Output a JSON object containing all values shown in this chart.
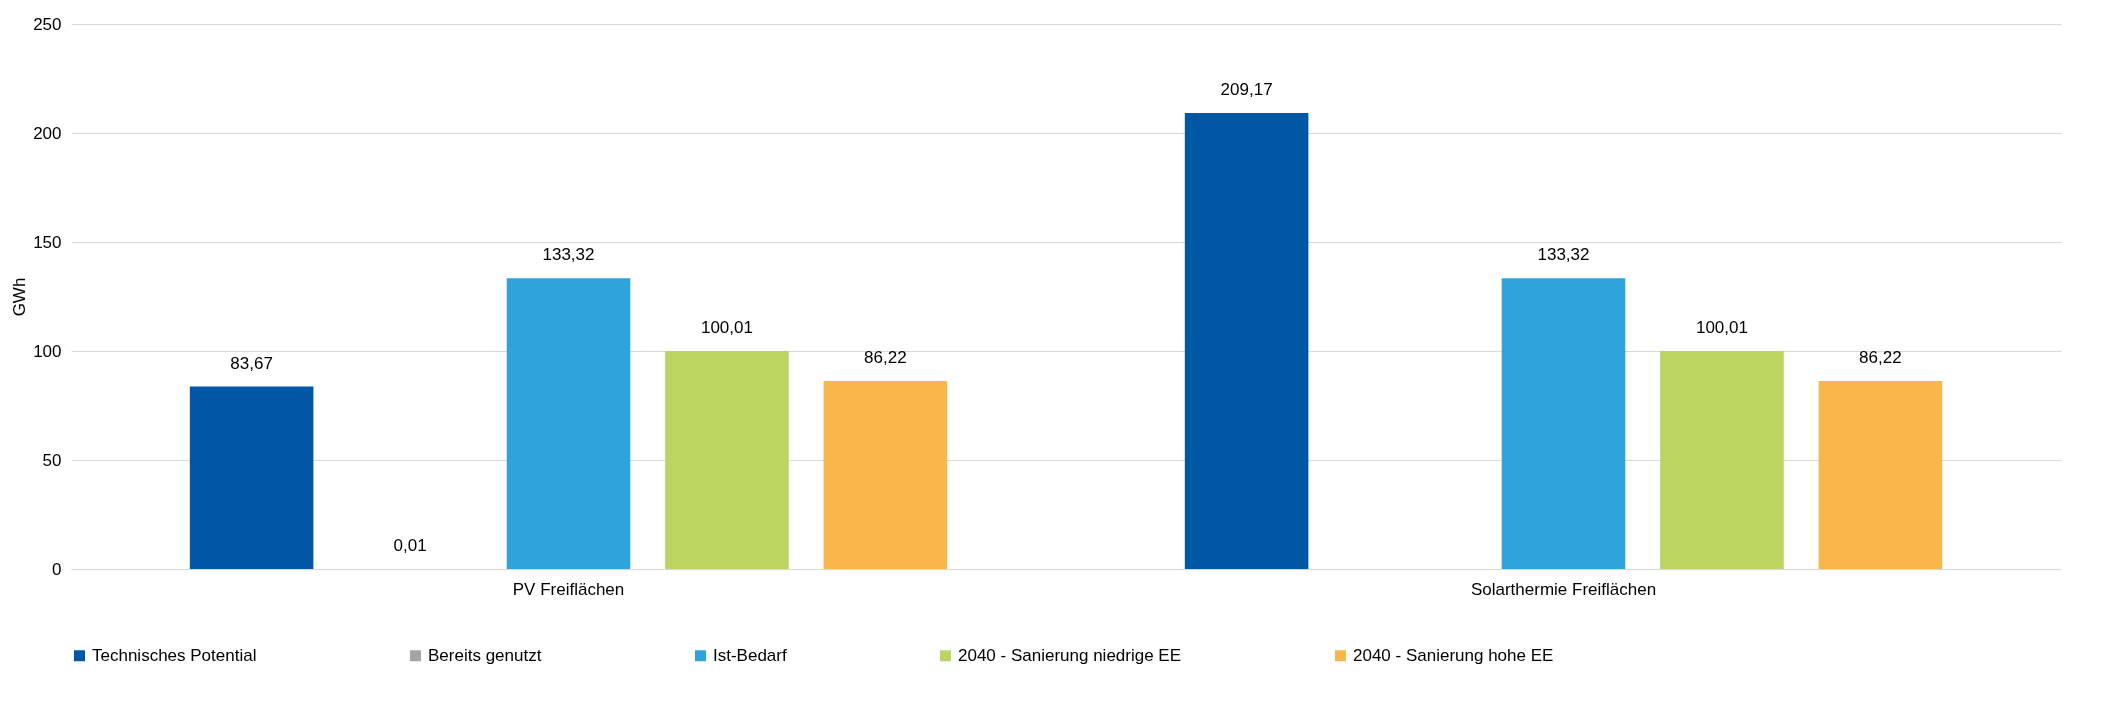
{
  "chart_data": {
    "type": "bar",
    "ylabel": "GWh",
    "categories": [
      "PV Freiflächen",
      "Solarthermie Freiflächen"
    ],
    "series": [
      {
        "name": "Technisches Potential",
        "color": "#0057a4",
        "values": [
          83.67,
          209.17
        ],
        "value_labels": [
          "83,67",
          "209,17"
        ]
      },
      {
        "name": "Bereits genutzt",
        "color": "#a5a5a5",
        "values": [
          0.01,
          null
        ],
        "value_labels": [
          "0,01",
          null
        ]
      },
      {
        "name": "Ist-Bedarf",
        "color": "#2ea3dc",
        "values": [
          133.32,
          133.32
        ],
        "value_labels": [
          "133,32",
          "133,32"
        ]
      },
      {
        "name": "2040 - Sanierung niedrige EE",
        "color": "#bcd462",
        "values": [
          100.01,
          100.01
        ],
        "value_labels": [
          "100,01",
          "100,01"
        ]
      },
      {
        "name": "2040 - Sanierung hohe EE",
        "color": "#f9b64a",
        "values": [
          86.22,
          86.22
        ],
        "value_labels": [
          "86,22",
          "86,22"
        ]
      }
    ],
    "ylim": [
      0,
      250
    ],
    "yticks": [
      0,
      50,
      100,
      150,
      200,
      250
    ],
    "grid": "y",
    "legend": "bottom"
  }
}
